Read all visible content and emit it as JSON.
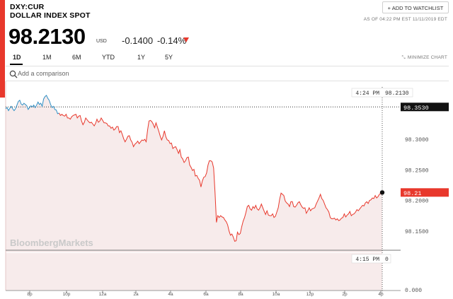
{
  "header": {
    "ticker": "DXY:CUR",
    "name": "DOLLAR INDEX SPOT",
    "price": "98.2130",
    "currency": "USD",
    "change": "-0.1400",
    "change_pct": "-0.14%",
    "watchlist_label": "+ ADD TO WATCHLIST",
    "as_of": "AS OF 04:22 PM EST 11/11/2019 EDT"
  },
  "tabs": [
    "1D",
    "1M",
    "6M",
    "YTD",
    "1Y",
    "5Y"
  ],
  "active_tab": "1D",
  "minimize_label": "MINIMIZE CHART",
  "compare": {
    "placeholder": "Add a comparison"
  },
  "watermark": "BloombergMarkets",
  "colors": {
    "accent": "#e8382c",
    "line_up": "#2f8fc4",
    "line_down": "#e8382c",
    "fill": "#f7ebeb"
  },
  "chart_data": {
    "type": "line",
    "title": "",
    "ylim": [
      98.115,
      98.395
    ],
    "y_ticks": [
      "98.3000",
      "98.2500",
      "98.2000",
      "98.1500"
    ],
    "y_tick_values": [
      98.3,
      98.25,
      98.2,
      98.15
    ],
    "x_ticks": [
      "8p",
      "10p",
      "12a",
      "2a",
      "4a",
      "6a",
      "8a",
      "10a",
      "12p",
      "2p",
      "4p"
    ],
    "prev_close": {
      "label": "98.3530",
      "value": 98.353
    },
    "last": {
      "label": "98.21",
      "value": 98.213
    },
    "hover_top": {
      "time": "4:24 PM",
      "value": "98.2130"
    },
    "hover_bottom": {
      "time": "4:15 PM",
      "value": "0"
    },
    "volume_axis_label": "0.000",
    "series": [
      {
        "x": [
          0,
          1,
          2,
          3,
          4,
          5,
          6,
          7,
          8,
          9,
          10,
          11,
          12,
          13,
          14,
          15,
          16,
          17,
          18,
          19,
          20,
          21,
          22,
          23,
          24,
          25,
          26,
          27,
          28,
          29,
          30,
          31,
          32,
          33,
          34,
          35,
          36,
          37,
          38,
          39,
          40,
          41,
          42,
          43,
          44,
          45,
          46,
          47,
          48,
          49,
          50,
          51,
          52,
          53,
          54,
          55,
          56,
          57,
          58,
          59,
          60,
          61,
          62,
          63,
          64,
          65,
          66,
          67,
          68,
          69,
          70,
          71,
          72,
          73,
          74,
          75,
          76,
          77,
          78,
          79,
          80,
          81,
          82,
          83,
          84,
          85,
          86,
          87,
          88,
          89,
          90,
          91,
          92,
          93,
          94,
          95,
          96,
          97,
          98,
          99,
          100,
          101,
          102,
          103,
          104,
          105,
          106,
          107,
          108,
          109,
          110,
          111,
          112,
          113,
          114,
          115,
          116,
          117,
          118,
          119,
          120,
          121,
          122,
          123,
          124,
          125,
          126,
          127,
          128,
          129,
          130,
          131,
          132,
          133,
          134,
          135,
          136,
          137,
          138,
          139,
          140,
          141,
          142,
          143,
          144,
          145,
          146,
          147,
          148,
          149,
          150,
          151,
          152,
          153,
          154,
          155,
          156,
          157,
          158,
          159,
          160,
          161,
          162,
          163,
          164,
          165,
          166,
          167,
          168,
          169,
          170,
          171,
          172,
          173,
          174,
          175,
          176,
          177,
          178,
          179,
          180,
          181,
          182,
          183,
          184,
          185,
          186,
          187,
          188,
          189,
          190,
          191,
          192,
          193,
          194,
          195,
          196,
          197,
          198,
          199,
          200,
          201,
          202,
          203,
          204,
          205,
          206,
          207,
          208,
          209,
          210,
          211,
          212,
          213,
          214,
          215,
          216,
          217,
          218,
          219,
          220,
          221,
          222,
          223,
          224,
          225,
          226,
          227,
          228,
          229,
          230,
          231,
          232,
          233,
          234,
          235,
          236,
          237,
          238,
          239,
          240,
          241,
          242,
          243,
          244,
          245,
          246,
          247,
          248,
          249,
          250,
          251,
          252,
          253,
          254,
          255,
          256,
          257,
          258,
          259,
          260,
          261,
          262,
          263,
          264,
          265,
          266,
          267,
          268
        ],
        "y": [
          98.35,
          98.352,
          98.347,
          98.351,
          98.354,
          98.35,
          98.347,
          98.35,
          98.356,
          98.362,
          98.364,
          98.358,
          98.356,
          98.359,
          98.357,
          98.355,
          98.349,
          98.352,
          98.355,
          98.353,
          98.356,
          98.352,
          98.356,
          98.361,
          98.357,
          98.359,
          98.354,
          98.366,
          98.37,
          98.372,
          98.367,
          98.364,
          98.357,
          98.352,
          98.354,
          98.349,
          98.348,
          98.342,
          98.343,
          98.339,
          98.341,
          98.339,
          98.338,
          98.341,
          98.335,
          98.335,
          98.333,
          98.337,
          98.339,
          98.34,
          98.341,
          98.335,
          98.338,
          98.339,
          98.33,
          98.324,
          98.328,
          98.335,
          98.332,
          98.329,
          98.327,
          98.328,
          98.325,
          98.322,
          98.326,
          98.333,
          98.328,
          98.33,
          98.335,
          98.331,
          98.327,
          98.327,
          98.326,
          98.322,
          98.322,
          98.318,
          98.32,
          98.315,
          98.317,
          98.321,
          98.321,
          98.311,
          98.314,
          98.308,
          98.301,
          98.296,
          98.3,
          98.305,
          98.306,
          98.299,
          98.295,
          98.288,
          98.292,
          98.294,
          98.297,
          98.293,
          98.296,
          98.299,
          98.298,
          98.3,
          98.296,
          98.315,
          98.33,
          98.331,
          98.329,
          98.325,
          98.319,
          98.327,
          98.32,
          98.313,
          98.305,
          98.299,
          98.305,
          98.314,
          98.304,
          98.299,
          98.298,
          98.293,
          98.294,
          98.285,
          98.287,
          98.288,
          98.283,
          98.277,
          98.283,
          98.271,
          98.268,
          98.262,
          98.265,
          98.27,
          98.271,
          98.258,
          98.254,
          98.249,
          98.251,
          98.24,
          98.241,
          98.236,
          98.233,
          98.222,
          98.232,
          98.238,
          98.239,
          98.245,
          98.258,
          98.265,
          98.265,
          98.263,
          98.253,
          98.213,
          98.164,
          98.175,
          98.172,
          98.175,
          98.173,
          98.172,
          98.168,
          98.165,
          98.16,
          98.15,
          98.143,
          98.145,
          98.14,
          98.133,
          98.134,
          98.148,
          98.144,
          98.146,
          98.157,
          98.166,
          98.172,
          98.18,
          98.19,
          98.192,
          98.186,
          98.184,
          98.19,
          98.187,
          98.192,
          98.186,
          98.184,
          98.188,
          98.194,
          98.188,
          98.182,
          98.177,
          98.183,
          98.176,
          98.175,
          98.175,
          98.178,
          98.172,
          98.174,
          98.181,
          98.188,
          98.202,
          98.212,
          98.21,
          98.208,
          98.199,
          98.196,
          98.194,
          98.19,
          98.198,
          98.198,
          98.19,
          98.189,
          98.192,
          98.196,
          98.198,
          98.193,
          98.189,
          98.187,
          98.188,
          98.179,
          98.183,
          98.188,
          98.183,
          98.186,
          98.187,
          98.188,
          98.194,
          98.199,
          98.204,
          98.21,
          98.203,
          98.2,
          98.194,
          98.188,
          98.185,
          98.181,
          98.172,
          98.17,
          98.17,
          98.171,
          98.168,
          98.17,
          98.167,
          98.168,
          98.171,
          98.172,
          98.178,
          98.173,
          98.176,
          98.178,
          98.182,
          98.175,
          98.177,
          98.178,
          98.181,
          98.185,
          98.183,
          98.186,
          98.189,
          98.192,
          98.191,
          98.196,
          98.198,
          98.195,
          98.2,
          98.201,
          98.204,
          98.203,
          98.208,
          98.204,
          98.206,
          98.21,
          98.212,
          98.213
        ],
        "up_until_index": 38
      }
    ]
  }
}
